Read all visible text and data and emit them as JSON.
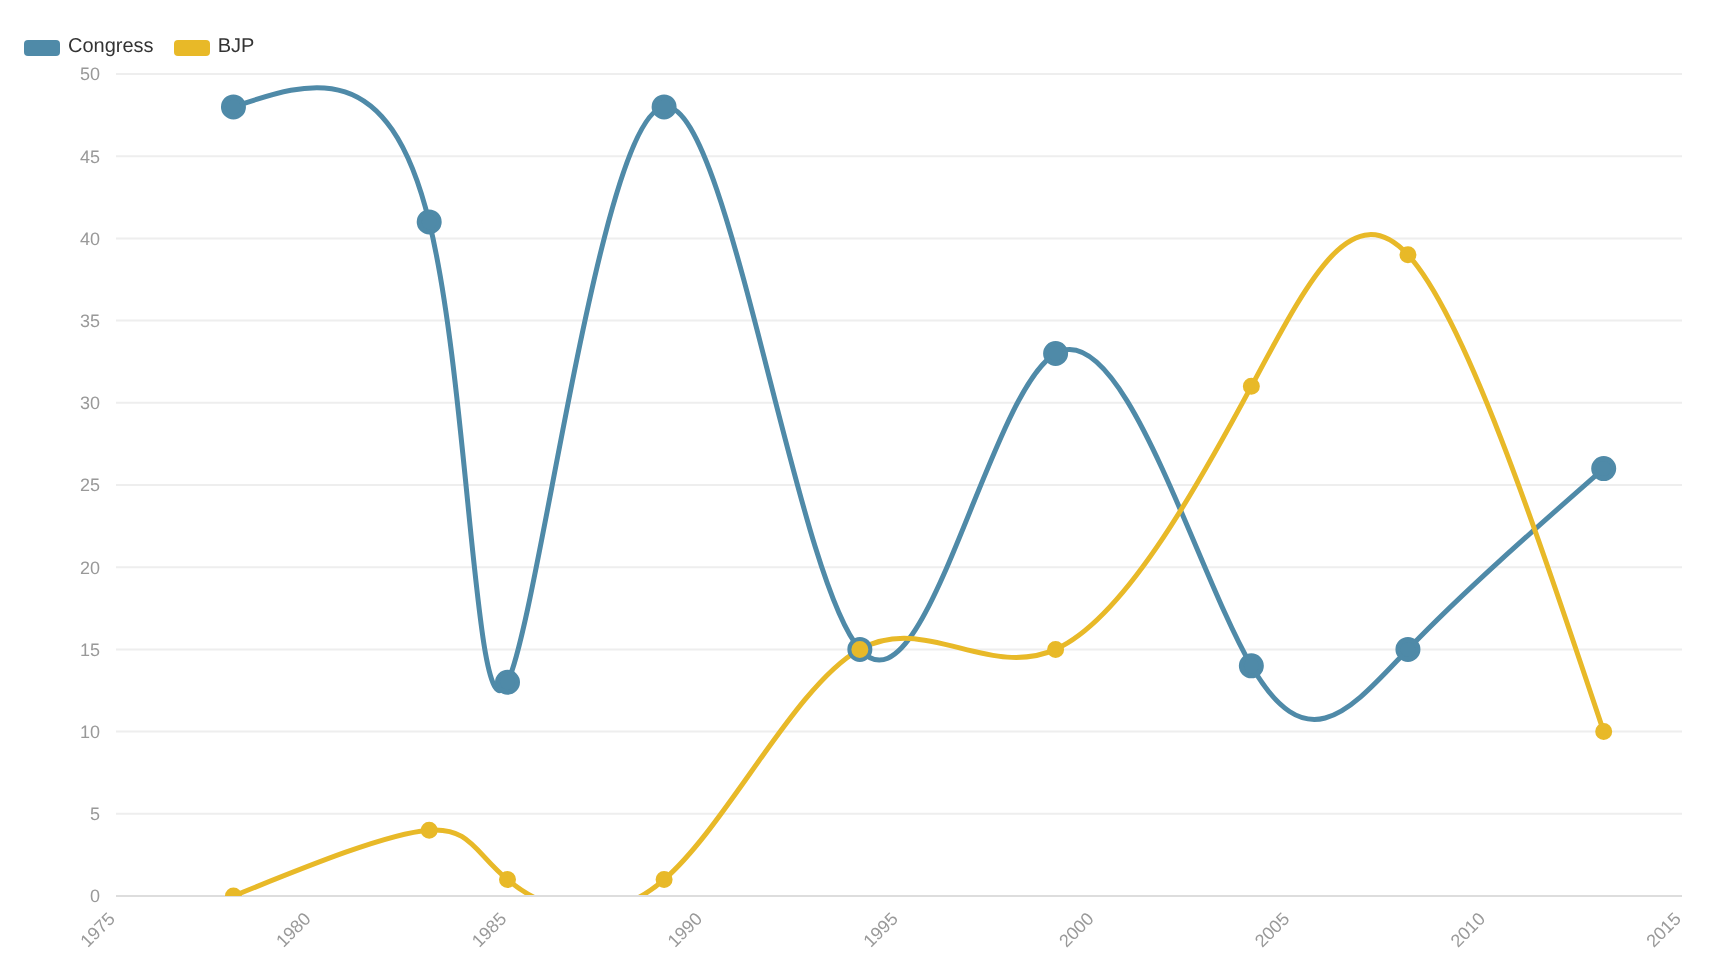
{
  "chart_data": {
    "type": "line",
    "x": [
      1978,
      1983,
      1985,
      1989,
      1994,
      1999,
      2004,
      2008,
      2013
    ],
    "series": [
      {
        "name": "Congress",
        "color": "#4f8aa8",
        "values": [
          48,
          41,
          13,
          48,
          15,
          33,
          14,
          15,
          26
        ]
      },
      {
        "name": "BJP",
        "color": "#e8b928",
        "values": [
          0,
          4,
          1,
          1,
          15,
          15,
          31,
          39,
          10
        ]
      }
    ],
    "xlim": [
      1975,
      2015
    ],
    "xticks": [
      1975,
      1980,
      1985,
      1990,
      1995,
      2000,
      2005,
      2010,
      2015
    ],
    "ylim": [
      0,
      50
    ],
    "yticks": [
      0,
      5,
      10,
      15,
      20,
      25,
      30,
      35,
      40,
      45,
      50
    ],
    "grid": "y",
    "legend": "top left",
    "marker": "circle",
    "line_style": "solid"
  }
}
